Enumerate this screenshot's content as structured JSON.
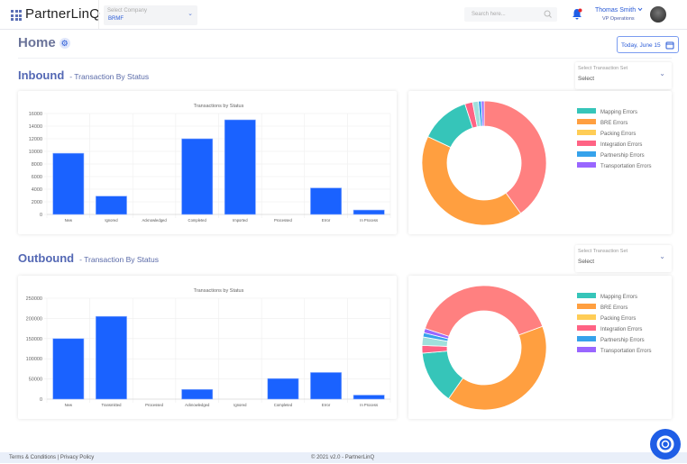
{
  "header": {
    "logo": "PartnerLinQ",
    "company_label": "Select Company",
    "company_value": "BRMF",
    "search_placeholder": "Search here...",
    "user_name": "Thomas Smith",
    "user_role": "VP Operations"
  },
  "page": {
    "title": "Home",
    "date": "Today, June 15"
  },
  "inbound": {
    "title": "Inbound",
    "subtitle": "- Transaction By Status",
    "select_label": "Select Transaction Set",
    "select_value": "Select"
  },
  "outbound": {
    "title": "Outbound",
    "subtitle": "- Transaction By Status",
    "select_label": "Select Transaction Set",
    "select_value": "Select"
  },
  "legend": [
    "Mapping Errors",
    "BRE Errors",
    "Packing Errors",
    "Integration Errors",
    "Partnership Errors",
    "Transportation Errors"
  ],
  "chart_data": [
    {
      "type": "bar",
      "title": "Transactions by Status",
      "categories": [
        "New",
        "Ignored",
        "Acknowledged",
        "Completed",
        "Imported",
        "Processed",
        "Error",
        "In Process"
      ],
      "values": [
        9700,
        2900,
        0,
        12000,
        15000,
        0,
        4200,
        700
      ],
      "ylim": [
        0,
        16000
      ],
      "yticks": [
        0,
        2000,
        4000,
        6000,
        8000,
        10000,
        12000,
        14000,
        16000
      ],
      "color": "#1a62ff",
      "grid": true
    },
    {
      "type": "pie",
      "donut": true,
      "legend": "right",
      "slices": [
        {
          "label": "",
          "value": 40,
          "color": "#ff8080"
        },
        {
          "label": "BRE Errors",
          "value": 42,
          "color": "#ff9f40"
        },
        {
          "label": "Mapping Errors",
          "value": 13,
          "color": "#36c5b9"
        },
        {
          "label": "Integration Errors",
          "value": 2,
          "color": "#ff6384"
        },
        {
          "label": "",
          "value": 1.5,
          "color": "#a0e0dc"
        },
        {
          "label": "Partnership Errors",
          "value": 0.8,
          "color": "#36a2eb"
        },
        {
          "label": "Transportation Errors",
          "value": 0.7,
          "color": "#9966ff"
        },
        {
          "label": "Packing Errors",
          "value": 0,
          "color": "#ffcd56"
        }
      ]
    },
    {
      "type": "bar",
      "title": "Transactions by Status",
      "categories": [
        "New",
        "Transmitted",
        "Processed",
        "Acknowledged",
        "Ignored",
        "Completed",
        "Error",
        "In Process"
      ],
      "values": [
        150000,
        205000,
        0,
        24000,
        0,
        51000,
        66000,
        10000
      ],
      "ylim": [
        0,
        250000
      ],
      "yticks": [
        0,
        50000,
        100000,
        150000,
        200000,
        250000
      ],
      "color": "#1a62ff",
      "grid": true
    },
    {
      "type": "pie",
      "donut": true,
      "legend": "right",
      "slices": [
        {
          "label": "",
          "value": 39.4,
          "color": "#ff8080"
        },
        {
          "label": "BRE Errors",
          "value": 40.3,
          "color": "#ff9f40"
        },
        {
          "label": "Mapping Errors",
          "value": 13.9,
          "color": "#36c5b9"
        },
        {
          "label": "Integration Errors",
          "value": 2,
          "color": "#ff6384"
        },
        {
          "label": "",
          "value": 2.2,
          "color": "#a0e0dc"
        },
        {
          "label": "Partnership Errors",
          "value": 1.1,
          "color": "#36a2eb"
        },
        {
          "label": "Transportation Errors",
          "value": 1.1,
          "color": "#9966ff"
        },
        {
          "label": "Packing Errors",
          "value": 0,
          "color": "#ffcd56"
        }
      ]
    }
  ],
  "footer": {
    "links": "Terms & Conditions  | Privacy Policy",
    "copyright": "© 2021 v2.0 - PartnerLinQ"
  }
}
